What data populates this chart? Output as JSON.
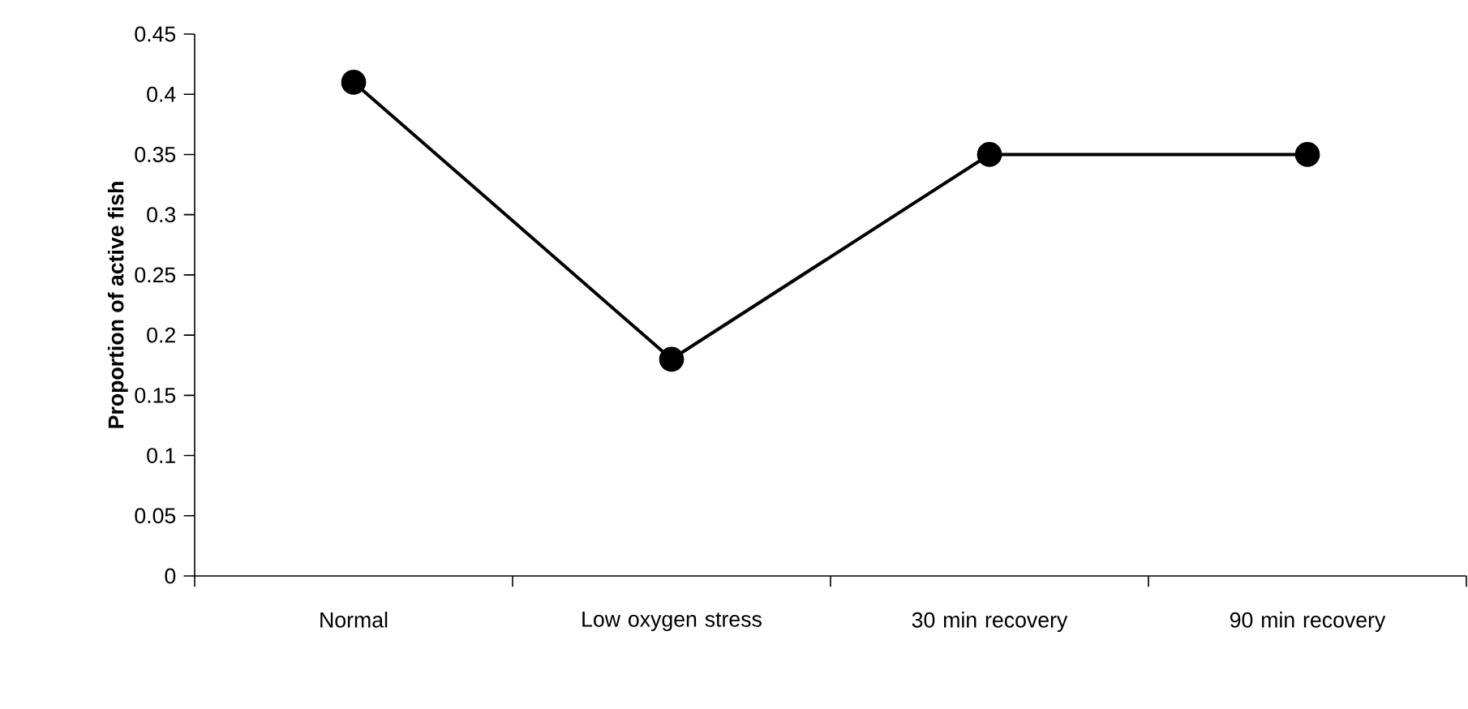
{
  "chart_data": {
    "type": "line",
    "ylabel": "Proportion of active fish",
    "categories": [
      "Normal",
      "Low oxygen stress",
      "30 min recovery",
      "90 min recovery"
    ],
    "series": [
      {
        "color": "#000000",
        "values": [
          0.41,
          0.18,
          0.35,
          0.35
        ]
      }
    ],
    "ylim": [
      0,
      0.45
    ],
    "yticks": [
      0,
      0.05,
      0.1,
      0.15,
      0.2,
      0.25,
      0.3,
      0.35,
      0.4,
      0.45
    ],
    "marker": "circle",
    "line_style": "solid",
    "grid": false
  }
}
